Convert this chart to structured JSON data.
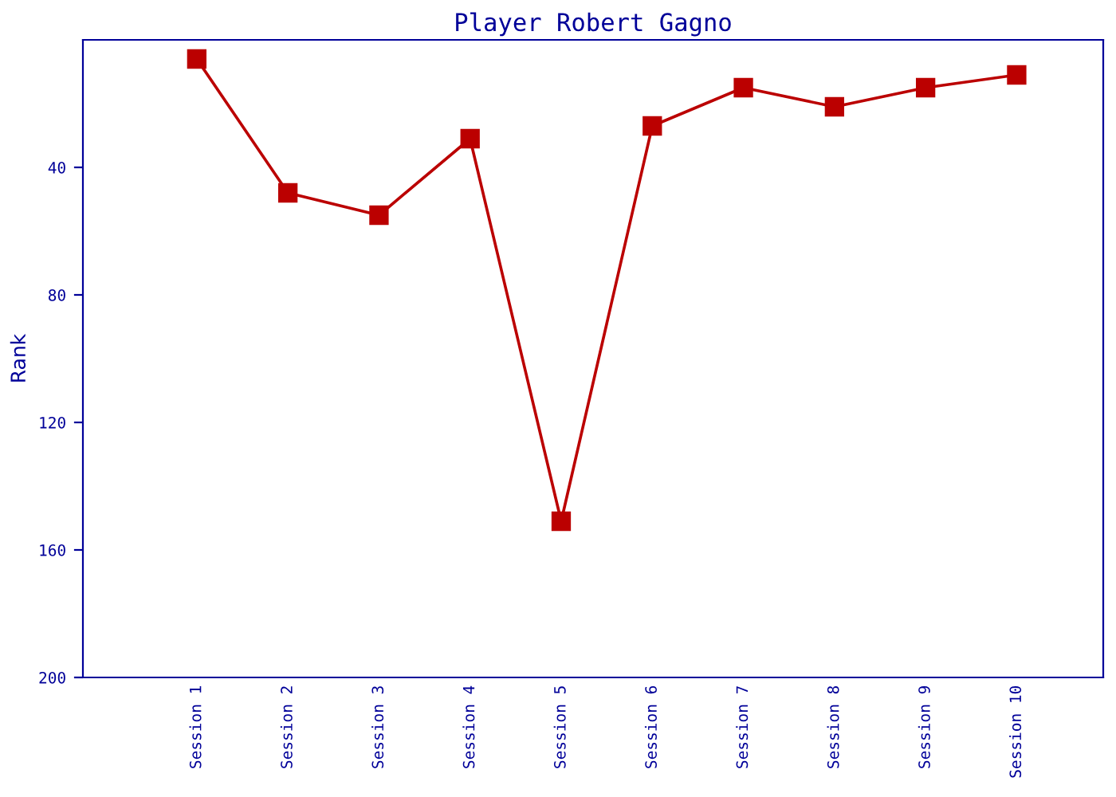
{
  "chart_data": {
    "type": "line",
    "title": "Player Robert Gagno",
    "ylabel": "Rank",
    "categories": [
      "Session 1",
      "Session 2",
      "Session 3",
      "Session 4",
      "Session 5",
      "Session 6",
      "Session 7",
      "Session 8",
      "Session 9",
      "Session 10"
    ],
    "series": [
      {
        "color": "#bb0000",
        "values": [
          6,
          48,
          55,
          31,
          151,
          27,
          15,
          21,
          15,
          11
        ]
      }
    ],
    "ylim": [
      200,
      0
    ],
    "yticks": [
      40,
      80,
      120,
      160,
      200
    ],
    "marker": "square",
    "line_style": "solid",
    "grid": false,
    "legend": false
  }
}
